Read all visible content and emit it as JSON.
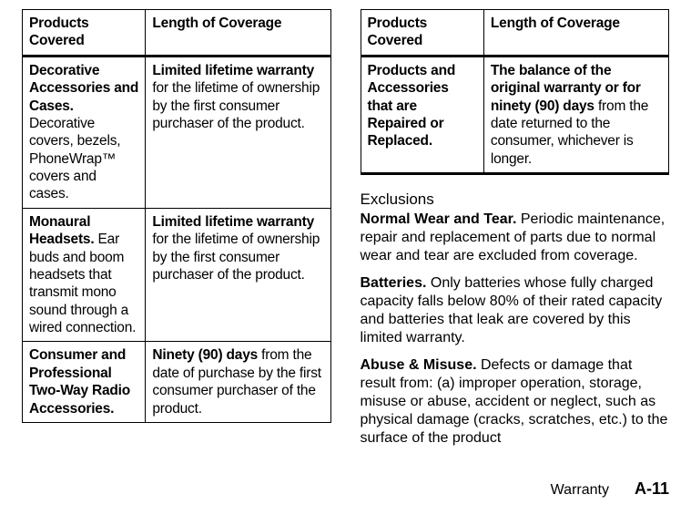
{
  "tables": {
    "left": {
      "headers": {
        "c1": "Products Covered",
        "c2": "Length of Coverage"
      },
      "rows": [
        {
          "c1_bold": "Decorative Accessories and Cases.",
          "c1_rest": " Decorative covers, bezels, PhoneWrap™ covers and cases.",
          "c2_bold": "Limited lifetime warranty",
          "c2_rest": " for the lifetime of ownership by the first consumer purchaser of the product."
        },
        {
          "c1_bold": "Monaural Headsets.",
          "c1_rest": " Ear buds and boom headsets that transmit mono sound through a wired connection.",
          "c2_bold": "Limited lifetime warranty",
          "c2_rest": " for the lifetime of ownership by the first consumer purchaser of the product."
        },
        {
          "c1_bold": "Consumer and Professional Two-Way Radio Accessories.",
          "c1_rest": "",
          "c2_bold": "Ninety (90) days",
          "c2_rest": " from the date of purchase by the first consumer purchaser of the product."
        }
      ]
    },
    "right": {
      "headers": {
        "c1": "Products Covered",
        "c2": "Length of Coverage"
      },
      "rows": [
        {
          "c1_bold": "Products and Accessories that are Repaired or Replaced.",
          "c1_rest": "",
          "c2_bold": "The balance of the original warranty or for ninety (90) days",
          "c2_rest": " from the date returned to the consumer, whichever is longer."
        }
      ]
    }
  },
  "exclusions": {
    "heading": "Exclusions",
    "items": [
      {
        "bold": "Normal Wear and Tear.",
        "rest": " Periodic maintenance, repair and replacement of parts due to normal wear and tear are excluded from coverage."
      },
      {
        "bold": "Batteries.",
        "rest": " Only batteries whose fully charged capacity falls below 80% of their rated capacity and batteries that leak are covered by this limited warranty."
      },
      {
        "bold": "Abuse & Misuse.",
        "rest": " Defects or damage that result from: (a) improper operation, storage, misuse or abuse, accident or neglect, such as physical damage (cracks, scratches, etc.) to the surface of the product"
      }
    ]
  },
  "footer": {
    "label": "Warranty",
    "page": "A-11"
  },
  "colors": {
    "border": "#000000",
    "text": "#000000",
    "bg": "#ffffff"
  }
}
